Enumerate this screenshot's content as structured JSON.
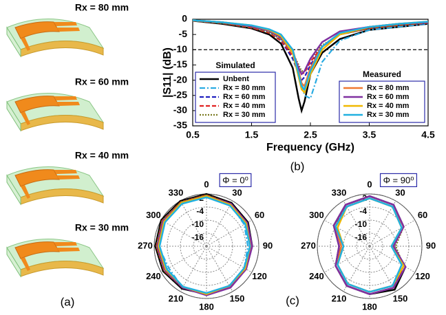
{
  "panel_a": {
    "labels": [
      "Rx = 80 mm",
      "Rx = 60 mm",
      "Rx = 40 mm",
      "Rx = 30 mm"
    ],
    "caption": "(a)"
  },
  "panel_b_caption": "(b)",
  "panel_c_caption": "(c)",
  "chart_data": [
    {
      "type": "line",
      "xlabel": "Frequency (GHz)",
      "ylabel": "|S11| (dB)",
      "x": [
        0.5,
        1.0,
        1.5,
        1.8,
        2.0,
        2.2,
        2.3,
        2.35,
        2.4,
        2.5,
        2.7,
        3.0,
        3.5,
        4.0,
        4.5
      ],
      "xlim": [
        0.5,
        4.5
      ],
      "xticks": [
        0.5,
        1.5,
        2.5,
        3.5,
        4.5
      ],
      "ylim": [
        -35,
        0
      ],
      "yticks": [
        0,
        -5,
        -10,
        -15,
        -20,
        -25,
        -30,
        -35
      ],
      "reference_line": -10,
      "series_groups": [
        {
          "title": "Simulated",
          "legend": "lower left",
          "series": [
            {
              "name": "Unbent",
              "color": "#000000",
              "style": "solid",
              "values": [
                -0.5,
                -1.5,
                -3,
                -5,
                -8,
                -16,
                -26,
                -30,
                -27,
                -18,
                -11,
                -6.5,
                -3.5,
                -2.5,
                -1.5
              ]
            },
            {
              "name": "Rx = 80 mm",
              "color": "#29abe2",
              "style": "dashdot",
              "values": [
                -0.5,
                -1.2,
                -2.5,
                -4,
                -6.5,
                -11,
                -17,
                -21,
                -25,
                -26,
                -14,
                -7,
                -3.5,
                -2.5,
                -1.5
              ]
            },
            {
              "name": "Rx = 60 mm",
              "color": "#1f1fbf",
              "style": "dashed",
              "values": [
                -0.5,
                -1.3,
                -2.8,
                -4.5,
                -7,
                -13,
                -18,
                -20,
                -19,
                -15,
                -9,
                -5,
                -3,
                -2,
                -1.3
              ]
            },
            {
              "name": "Rx = 40 mm",
              "color": "#e02020",
              "style": "dashed",
              "values": [
                -0.5,
                -1.3,
                -2.8,
                -4.5,
                -7,
                -12,
                -16,
                -18,
                -17.5,
                -14,
                -9,
                -5,
                -3,
                -2,
                -1.2
              ]
            },
            {
              "name": "Rx = 30 mm",
              "color": "#7a7a20",
              "style": "dotted",
              "values": [
                -0.5,
                -1.3,
                -2.7,
                -4.3,
                -6.5,
                -11,
                -15,
                -17,
                -17,
                -13,
                -8.5,
                -5,
                -3,
                -2,
                -1.2
              ]
            }
          ]
        },
        {
          "title": "Measured",
          "legend": "lower right",
          "series": [
            {
              "name": "Rx = 80 mm",
              "color": "#f07830",
              "style": "solid",
              "values": [
                -0.3,
                -1,
                -2.2,
                -3.5,
                -5.5,
                -10,
                -17,
                -21,
                -22,
                -16,
                -9,
                -4.5,
                -2.5,
                -1.5,
                -1
              ]
            },
            {
              "name": "Rx = 60 mm",
              "color": "#8030a0",
              "style": "solid",
              "values": [
                -0.3,
                -1,
                -2.3,
                -3.8,
                -6,
                -11,
                -16,
                -18,
                -17,
                -13,
                -7.5,
                -4,
                -2.5,
                -1.5,
                -1
              ]
            },
            {
              "name": "Rx = 40 mm",
              "color": "#f0b800",
              "style": "solid",
              "values": [
                -0.3,
                -1,
                -2,
                -3.5,
                -5.5,
                -11,
                -19,
                -23,
                -24,
                -18,
                -10,
                -5,
                -2.5,
                -1.5,
                -0.8
              ]
            },
            {
              "name": "Rx = 30 mm",
              "color": "#20b0e0",
              "style": "solid",
              "values": [
                -0.3,
                -1,
                -2,
                -3.3,
                -5,
                -10,
                -18,
                -22,
                -23,
                -17,
                -9,
                -4.5,
                -2.5,
                -1.5,
                -0.8
              ]
            }
          ]
        }
      ]
    },
    {
      "type": "polar",
      "title": "Φ = 0⁰",
      "theta": [
        0,
        30,
        60,
        90,
        120,
        150,
        180,
        210,
        240,
        270,
        300,
        330
      ],
      "thetaticks": [
        0,
        30,
        60,
        90,
        120,
        150,
        180,
        210,
        240,
        270,
        300,
        330
      ],
      "rlim": [
        -22,
        2
      ],
      "rticks": [
        2,
        -4,
        -10,
        -16
      ],
      "series": [
        {
          "color": "#000000",
          "style": "solid",
          "values": [
            2,
            1,
            0,
            -1,
            -1.5,
            -1,
            0,
            0.5,
            1,
            1.5,
            2,
            2
          ]
        },
        {
          "color": "#29abe2",
          "style": "dashdot",
          "values": [
            1,
            0,
            -2,
            -3,
            -2,
            -1,
            0,
            0,
            -2,
            0,
            1,
            1
          ]
        },
        {
          "color": "#1f1fbf",
          "style": "dashed",
          "values": [
            1.5,
            0.5,
            -0.5,
            -1,
            -1,
            -0.5,
            0,
            0,
            0.5,
            1,
            1.5,
            1.5
          ]
        },
        {
          "color": "#e02020",
          "style": "dashed",
          "values": [
            1.5,
            0.5,
            -0.5,
            -1,
            -1,
            0,
            0,
            0,
            0.5,
            1,
            1.5,
            1.5
          ]
        },
        {
          "color": "#7a7a20",
          "style": "dotted",
          "values": [
            1.5,
            0.5,
            -0.5,
            -1,
            -1,
            -0.5,
            0,
            0,
            0.5,
            1,
            1.5,
            1.5
          ]
        },
        {
          "color": "#f07830",
          "style": "solid",
          "values": [
            1,
            0,
            -1,
            -1.5,
            -1,
            -0.5,
            0,
            0,
            0,
            0.5,
            1,
            1
          ]
        },
        {
          "color": "#8030a0",
          "style": "solid",
          "values": [
            1,
            0.5,
            -0.5,
            -1,
            -1,
            0,
            0.5,
            0,
            0,
            0.5,
            1,
            1
          ]
        },
        {
          "color": "#f0b800",
          "style": "solid",
          "values": [
            1,
            0,
            -1,
            -2,
            -1.5,
            -1,
            0,
            -0.5,
            -0.5,
            0,
            0.5,
            1
          ]
        },
        {
          "color": "#20b0e0",
          "style": "solid",
          "values": [
            0.5,
            -0.5,
            -1.5,
            -2,
            -2,
            -1,
            -0.5,
            -0.5,
            -1,
            -0.5,
            0,
            0.5
          ]
        }
      ]
    },
    {
      "type": "polar",
      "title": "Φ = 90⁰",
      "theta": [
        0,
        30,
        60,
        90,
        120,
        150,
        180,
        210,
        240,
        270,
        300,
        330
      ],
      "thetaticks": [
        0,
        30,
        60,
        90,
        120,
        150,
        180,
        210,
        240,
        270,
        300,
        330
      ],
      "rlim": [
        -22,
        2
      ],
      "rticks": [
        2,
        -4,
        -10,
        -16
      ],
      "series": [
        {
          "color": "#000000",
          "style": "solid",
          "values": [
            1,
            0,
            -4,
            -11,
            -3,
            1,
            0,
            -1,
            -4,
            -8,
            -3,
            0
          ]
        },
        {
          "color": "#29abe2",
          "style": "dashdot",
          "values": [
            0,
            -1,
            -5,
            -12,
            -5,
            -1,
            -1,
            -2,
            -5,
            -10,
            -5,
            -1
          ]
        },
        {
          "color": "#1f1fbf",
          "style": "dashed",
          "values": [
            1,
            0,
            -4,
            -11,
            -4,
            0,
            0,
            -1,
            -4,
            -9,
            -4,
            0
          ]
        },
        {
          "color": "#e02020",
          "style": "dashed",
          "values": [
            1,
            0,
            -4,
            -11,
            -4,
            0,
            0,
            -1,
            -4,
            -9,
            -4,
            0
          ]
        },
        {
          "color": "#7a7a20",
          "style": "dotted",
          "values": [
            1,
            0,
            -4,
            -10,
            -4,
            0,
            0,
            -1,
            -4,
            -9,
            -4,
            0
          ]
        },
        {
          "color": "#f07830",
          "style": "solid",
          "values": [
            0,
            -1,
            -4,
            -11,
            -4,
            -1,
            -1,
            -2,
            -5,
            -9,
            -4,
            -1
          ]
        },
        {
          "color": "#8030a0",
          "style": "solid",
          "values": [
            1,
            0,
            -4,
            -11,
            -3,
            0,
            0,
            -1,
            -4,
            -8,
            -3,
            0
          ]
        },
        {
          "color": "#f0b800",
          "style": "solid",
          "values": [
            0,
            -1,
            -5,
            -12,
            -4,
            -1,
            -1,
            -2,
            -5,
            -10,
            -5,
            -1
          ]
        },
        {
          "color": "#20b0e0",
          "style": "solid",
          "values": [
            0,
            -1,
            -5,
            -12,
            -5,
            -1,
            -1,
            -2,
            -5,
            -10,
            -4,
            -1
          ]
        }
      ]
    }
  ]
}
